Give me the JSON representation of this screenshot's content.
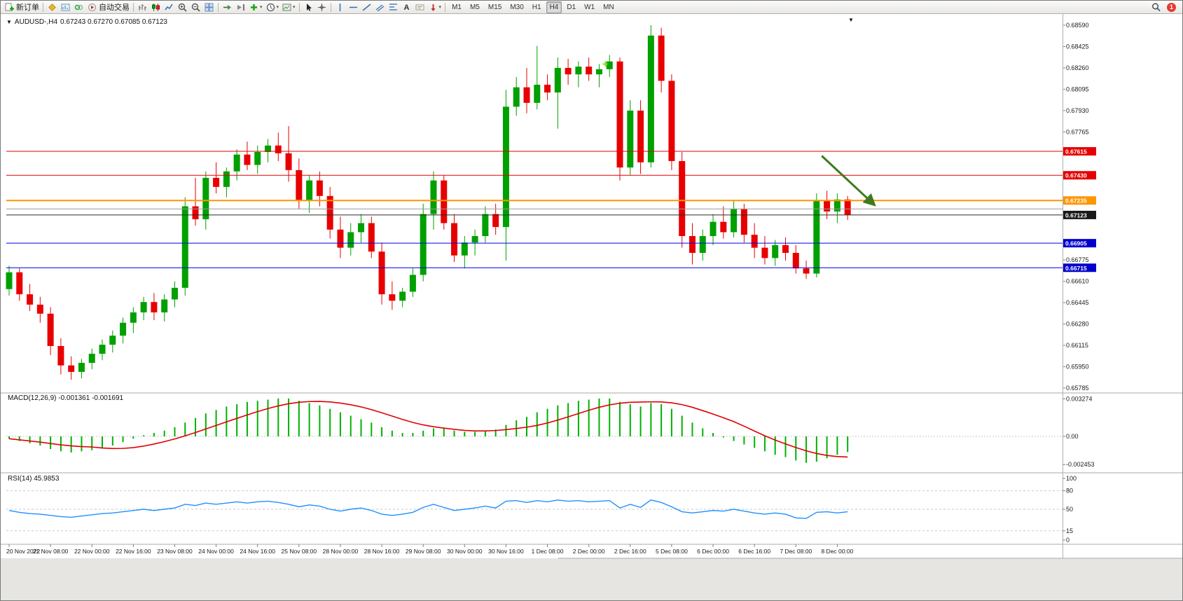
{
  "chart": {
    "symbol_period": "AUDUSD-,H4",
    "ohlc": "0.67243 0.67270 0.67085 0.67123"
  },
  "macd": {
    "title": "MACD(12,26,9)",
    "values": "-0.001361 -0.001691"
  },
  "rsi": {
    "title": "RSI(14)",
    "value": "45.9853"
  },
  "colors": {
    "up": "#00A000",
    "down": "#E80000",
    "macd_hist": "#00B200",
    "macd_signal": "#E00000",
    "rsi_line": "#1E90FF",
    "axis_text": "#1a1a1a",
    "sep": "#a8a8a8",
    "level_dash": "#c9c9c9"
  },
  "toolbar": {
    "items": [
      {
        "t": "btn",
        "name": "new-order",
        "icon": "doc-plus",
        "label": "新订单"
      },
      {
        "t": "sep"
      },
      {
        "t": "icon",
        "name": "profiles",
        "icon": "diamond"
      },
      {
        "t": "icon",
        "name": "chart-window",
        "icon": "chart-window"
      },
      {
        "t": "icon",
        "name": "metaeditor",
        "icon": "green-rings"
      },
      {
        "t": "btn",
        "name": "autotrading",
        "icon": "play-dot",
        "label": "自动交易"
      },
      {
        "t": "sep"
      },
      {
        "t": "icon",
        "name": "bars-chart-type",
        "icon": "bars"
      },
      {
        "t": "icon",
        "name": "candles-chart-type",
        "icon": "candles"
      },
      {
        "t": "icon",
        "name": "line-chart-type",
        "icon": "linechart"
      },
      {
        "t": "icon",
        "name": "zoom-in",
        "icon": "zoom-in"
      },
      {
        "t": "icon",
        "name": "zoom-out",
        "icon": "zoom-out"
      },
      {
        "t": "icon",
        "name": "tile-windows",
        "icon": "grid"
      },
      {
        "t": "sep"
      },
      {
        "t": "icon",
        "name": "auto-scroll",
        "icon": "autoscroll"
      },
      {
        "t": "icon",
        "name": "chart-shift",
        "icon": "shift"
      },
      {
        "t": "icon",
        "name": "indicators",
        "icon": "indicator-plus",
        "caret": true
      },
      {
        "t": "icon",
        "name": "periods",
        "icon": "clock",
        "caret": true
      },
      {
        "t": "icon",
        "name": "templates",
        "icon": "template",
        "caret": true
      },
      {
        "t": "sep"
      },
      {
        "t": "icon",
        "name": "cursor",
        "icon": "cursor"
      },
      {
        "t": "icon",
        "name": "crosshair",
        "icon": "crosshair"
      },
      {
        "t": "sep"
      },
      {
        "t": "icon",
        "name": "vertical-line",
        "icon": "vline"
      },
      {
        "t": "icon",
        "name": "horizontal-line",
        "icon": "hline"
      },
      {
        "t": "icon",
        "name": "trendline",
        "icon": "tline"
      },
      {
        "t": "icon",
        "name": "equidistant-channel",
        "icon": "channel"
      },
      {
        "t": "icon",
        "name": "fibonacci",
        "icon": "fibo"
      },
      {
        "t": "icon",
        "name": "text-tool",
        "icon": "text-a"
      },
      {
        "t": "icon",
        "name": "text-label",
        "icon": "label"
      },
      {
        "t": "icon",
        "name": "arrows-tool",
        "icon": "arrow-tool",
        "caret": true
      },
      {
        "t": "sep"
      }
    ],
    "timeframes": [
      {
        "label": "M1"
      },
      {
        "label": "M5"
      },
      {
        "label": "M15"
      },
      {
        "label": "M30"
      },
      {
        "label": "H1"
      },
      {
        "label": "H4",
        "active": true
      },
      {
        "label": "D1"
      },
      {
        "label": "W1"
      },
      {
        "label": "MN"
      }
    ],
    "right": {
      "badge": "1"
    }
  },
  "chart_data": {
    "type": "candlestick",
    "symbol": "AUDUSD",
    "period": "H4",
    "main": {
      "ylim": [
        0.65785,
        0.6859
      ],
      "ticks": [
        "0.68590",
        "0.68425",
        "0.68260",
        "0.68095",
        "0.67930",
        "0.67765",
        "0.66775",
        "0.66610",
        "0.66445",
        "0.66280",
        "0.66115",
        "0.65950",
        "0.65785"
      ],
      "candles": [
        [
          0.6655,
          0.6673,
          0.665,
          0.6668
        ],
        [
          0.6668,
          0.6671,
          0.6646,
          0.6651
        ],
        [
          0.6651,
          0.6659,
          0.6638,
          0.6643
        ],
        [
          0.6643,
          0.6649,
          0.6629,
          0.6636
        ],
        [
          0.6636,
          0.6641,
          0.6604,
          0.6611
        ],
        [
          0.6611,
          0.6617,
          0.6589,
          0.6596
        ],
        [
          0.6596,
          0.6603,
          0.6585,
          0.6591
        ],
        [
          0.6591,
          0.6601,
          0.6586,
          0.6598
        ],
        [
          0.6598,
          0.6609,
          0.6593,
          0.6605
        ],
        [
          0.6605,
          0.6616,
          0.66,
          0.6612
        ],
        [
          0.6612,
          0.6623,
          0.6606,
          0.6619
        ],
        [
          0.6619,
          0.6633,
          0.6613,
          0.6629
        ],
        [
          0.6629,
          0.6641,
          0.6621,
          0.6637
        ],
        [
          0.6637,
          0.6649,
          0.6631,
          0.6645
        ],
        [
          0.6645,
          0.6652,
          0.6631,
          0.6637
        ],
        [
          0.6637,
          0.6651,
          0.663,
          0.6647
        ],
        [
          0.6647,
          0.6661,
          0.6641,
          0.6656
        ],
        [
          0.6656,
          0.6726,
          0.665,
          0.6719
        ],
        [
          0.6719,
          0.6741,
          0.6704,
          0.6709
        ],
        [
          0.6709,
          0.6746,
          0.6701,
          0.6741
        ],
        [
          0.6741,
          0.6753,
          0.6729,
          0.6734
        ],
        [
          0.6734,
          0.6749,
          0.6726,
          0.6746
        ],
        [
          0.6746,
          0.6763,
          0.6739,
          0.6759
        ],
        [
          0.6759,
          0.6769,
          0.6747,
          0.6751
        ],
        [
          0.6751,
          0.6766,
          0.6744,
          0.6761
        ],
        [
          0.6761,
          0.6771,
          0.6753,
          0.6766
        ],
        [
          0.6766,
          0.6776,
          0.6754,
          0.676
        ],
        [
          0.676,
          0.6781,
          0.6738,
          0.6747
        ],
        [
          0.6747,
          0.6756,
          0.6717,
          0.6724
        ],
        [
          0.6724,
          0.6743,
          0.6714,
          0.6739
        ],
        [
          0.6739,
          0.6746,
          0.6719,
          0.6727
        ],
        [
          0.6727,
          0.6734,
          0.6694,
          0.6701
        ],
        [
          0.6701,
          0.6711,
          0.6679,
          0.6687
        ],
        [
          0.6687,
          0.6706,
          0.6681,
          0.6699
        ],
        [
          0.6699,
          0.6713,
          0.6691,
          0.6706
        ],
        [
          0.6706,
          0.6711,
          0.6679,
          0.6684
        ],
        [
          0.6684,
          0.6691,
          0.6643,
          0.6651
        ],
        [
          0.6651,
          0.6661,
          0.6639,
          0.6646
        ],
        [
          0.6646,
          0.6656,
          0.6641,
          0.6653
        ],
        [
          0.6653,
          0.6671,
          0.6649,
          0.6666
        ],
        [
          0.6666,
          0.6721,
          0.6661,
          0.6713
        ],
        [
          0.6713,
          0.6746,
          0.6701,
          0.6739
        ],
        [
          0.6739,
          0.6743,
          0.6701,
          0.6706
        ],
        [
          0.6706,
          0.6713,
          0.6676,
          0.6681
        ],
        [
          0.6681,
          0.6696,
          0.6671,
          0.6691
        ],
        [
          0.6691,
          0.6701,
          0.6681,
          0.6696
        ],
        [
          0.6696,
          0.6719,
          0.6691,
          0.6713
        ],
        [
          0.6713,
          0.6721,
          0.6697,
          0.6703
        ],
        [
          0.6703,
          0.6809,
          0.6677,
          0.6796
        ],
        [
          0.6796,
          0.6819,
          0.6789,
          0.6811
        ],
        [
          0.6811,
          0.6826,
          0.6791,
          0.6799
        ],
        [
          0.6799,
          0.6843,
          0.6794,
          0.6813
        ],
        [
          0.6813,
          0.6821,
          0.6801,
          0.6807
        ],
        [
          0.6807,
          0.6834,
          0.6779,
          0.6826
        ],
        [
          0.6826,
          0.6833,
          0.6813,
          0.6821
        ],
        [
          0.6821,
          0.6831,
          0.6811,
          0.6827
        ],
        [
          0.6827,
          0.6834,
          0.6816,
          0.6821
        ],
        [
          0.6821,
          0.6829,
          0.6811,
          0.6825
        ],
        [
          0.6825,
          0.6836,
          0.6819,
          0.6831
        ],
        [
          0.6831,
          0.6834,
          0.6739,
          0.6749
        ],
        [
          0.6749,
          0.6801,
          0.6743,
          0.6793
        ],
        [
          0.6793,
          0.6801,
          0.6744,
          0.6753
        ],
        [
          0.6753,
          0.6859,
          0.6749,
          0.6851
        ],
        [
          0.6851,
          0.6857,
          0.6807,
          0.6816
        ],
        [
          0.6816,
          0.6821,
          0.6747,
          0.6754
        ],
        [
          0.6754,
          0.6761,
          0.6687,
          0.6696
        ],
        [
          0.6696,
          0.6706,
          0.6674,
          0.6683
        ],
        [
          0.6683,
          0.6701,
          0.6677,
          0.6696
        ],
        [
          0.6696,
          0.6713,
          0.6689,
          0.6707
        ],
        [
          0.6707,
          0.6719,
          0.6694,
          0.6699
        ],
        [
          0.6699,
          0.6723,
          0.6695,
          0.6717
        ],
        [
          0.6717,
          0.6721,
          0.6691,
          0.6697
        ],
        [
          0.6697,
          0.6706,
          0.6679,
          0.6687
        ],
        [
          0.6687,
          0.6696,
          0.6674,
          0.6679
        ],
        [
          0.6679,
          0.6693,
          0.6673,
          0.6689
        ],
        [
          0.6689,
          0.6695,
          0.6677,
          0.6683
        ],
        [
          0.6683,
          0.6689,
          0.6667,
          0.6671
        ],
        [
          0.6671,
          0.6677,
          0.6663,
          0.6667
        ],
        [
          0.6667,
          0.6729,
          0.6664,
          0.6723
        ],
        [
          0.6723,
          0.6731,
          0.6709,
          0.6715
        ],
        [
          0.6715,
          0.6729,
          0.6706,
          0.67243
        ],
        [
          0.67243,
          0.6727,
          0.67085,
          0.67123
        ]
      ],
      "hlines": [
        {
          "price": 0.67615,
          "label": "0.67615",
          "color": "#E60000",
          "width": 1,
          "badge": "#E60000"
        },
        {
          "price": 0.6743,
          "label": "0.67430",
          "color": "#E60000",
          "width": 1,
          "badge": "#E60000"
        },
        {
          "price": 0.67235,
          "label": "0.67235",
          "color": "#FF9500",
          "width": 2,
          "badge": "#FF9500"
        },
        {
          "price": 0.6717,
          "color": "#9A9A9A",
          "width": 1
        },
        {
          "price": 0.67123,
          "label": "0.67123",
          "color": "#2B2B2B",
          "width": 1,
          "badge": "#1A1A1A"
        },
        {
          "price": 0.66905,
          "label": "0.66905",
          "color": "#0000E6",
          "width": 1,
          "badge": "#0000CC"
        },
        {
          "price": 0.66715,
          "label": "0.66715",
          "color": "#0000E6",
          "width": 1,
          "badge": "#0000CC"
        }
      ],
      "arrow": {
        "from_index": 78.5,
        "from_price": 0.6758,
        "to_index": 83.6,
        "to_price": 0.672,
        "color": "#3E7A1E"
      },
      "marker": {
        "index": 57.6,
        "price": 0.6829,
        "color": "#76E000"
      }
    },
    "macd": {
      "values": [
        -0.0002,
        -0.0004,
        -0.0006,
        -0.0008,
        -0.0011,
        -0.0013,
        -0.0014,
        -0.0013,
        -0.0012,
        -0.001,
        -0.0008,
        -0.0005,
        -0.0002,
        0.0001,
        0.0003,
        0.0005,
        0.0008,
        0.0012,
        0.0016,
        0.002,
        0.0023,
        0.0026,
        0.0028,
        0.003,
        0.0031,
        0.0032,
        0.0033,
        0.0033,
        0.0031,
        0.0029,
        0.0027,
        0.0024,
        0.0021,
        0.0018,
        0.0015,
        0.0012,
        0.0008,
        0.0005,
        0.0003,
        0.0003,
        0.0005,
        0.0007,
        0.0007,
        0.0005,
        0.0004,
        0.0004,
        0.0005,
        0.0006,
        0.001,
        0.0014,
        0.0017,
        0.0021,
        0.0024,
        0.0027,
        0.0029,
        0.0031,
        0.0032,
        0.0033,
        0.0033,
        0.003,
        0.0028,
        0.0026,
        0.0029,
        0.0028,
        0.0024,
        0.0018,
        0.0012,
        0.0007,
        0.0003,
        -0.0001,
        -0.0004,
        -0.0007,
        -0.001,
        -0.0013,
        -0.0016,
        -0.0018,
        -0.0021,
        -0.0023,
        -0.0022,
        -0.0019,
        -0.0016,
        -0.001361
      ],
      "signal_period": 9,
      "ticks": [
        {
          "label": "0.003274",
          "value": 0.003274
        },
        {
          "label": "0.00",
          "value": 0.0
        },
        {
          "label": "-0.002453",
          "value": -0.002453
        }
      ]
    },
    "rsi": {
      "values": [
        48,
        45,
        43,
        42,
        40,
        38,
        37,
        39,
        41,
        43,
        44,
        46,
        48,
        50,
        48,
        50,
        52,
        58,
        56,
        60,
        58,
        60,
        62,
        60,
        62,
        63,
        61,
        58,
        54,
        57,
        55,
        50,
        47,
        50,
        52,
        48,
        42,
        40,
        42,
        45,
        53,
        58,
        53,
        48,
        50,
        52,
        55,
        52,
        63,
        64,
        61,
        64,
        62,
        65,
        63,
        64,
        62,
        63,
        64,
        52,
        58,
        53,
        65,
        61,
        54,
        46,
        44,
        46,
        48,
        47,
        50,
        47,
        44,
        42,
        44,
        42,
        36,
        35,
        45,
        46,
        44,
        45.9853
      ],
      "ticks": [
        {
          "label": "100",
          "value": 100
        },
        {
          "label": "80",
          "value": 80,
          "dashed": true
        },
        {
          "label": "50",
          "value": 50,
          "dashed": true
        },
        {
          "label": "15",
          "value": 15,
          "dashed": true
        },
        {
          "label": "0",
          "value": 0
        }
      ]
    },
    "time_labels": [
      {
        "i": 0,
        "label": "20 Nov 2022"
      },
      {
        "i": 4,
        "label": "21 Nov 08:00"
      },
      {
        "i": 8,
        "label": "22 Nov 00:00"
      },
      {
        "i": 12,
        "label": "22 Nov 16:00"
      },
      {
        "i": 16,
        "label": "23 Nov 08:00"
      },
      {
        "i": 20,
        "label": "24 Nov 00:00"
      },
      {
        "i": 24,
        "label": "24 Nov 16:00"
      },
      {
        "i": 28,
        "label": "25 Nov 08:00"
      },
      {
        "i": 32,
        "label": "28 Nov 00:00"
      },
      {
        "i": 36,
        "label": "28 Nov 16:00"
      },
      {
        "i": 40,
        "label": "29 Nov 08:00"
      },
      {
        "i": 44,
        "label": "30 Nov 00:00"
      },
      {
        "i": 48,
        "label": "30 Nov 16:00"
      },
      {
        "i": 52,
        "label": "1 Dec 08:00"
      },
      {
        "i": 56,
        "label": "2 Dec 00:00"
      },
      {
        "i": 60,
        "label": "2 Dec 16:00"
      },
      {
        "i": 64,
        "label": "5 Dec 08:00"
      },
      {
        "i": 68,
        "label": "6 Dec 00:00"
      },
      {
        "i": 72,
        "label": "6 Dec 16:00"
      },
      {
        "i": 76,
        "label": "7 Dec 08:00"
      },
      {
        "i": 80,
        "label": "8 Dec 00:00"
      }
    ]
  }
}
